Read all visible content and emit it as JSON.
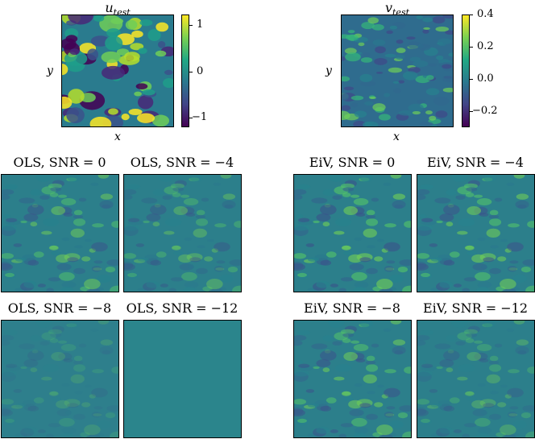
{
  "chart_data": [
    {
      "type": "heatmap",
      "title_base": "u",
      "title_sub": "test",
      "xlabel": "x",
      "ylabel": "y",
      "colorbar": {
        "ticks": [
          "1",
          "0",
          "−1"
        ],
        "range": [
          -1.3,
          1.3
        ]
      },
      "colormap": "viridis"
    },
    {
      "type": "heatmap",
      "title_base": "v",
      "title_sub": "test",
      "xlabel": "x",
      "ylabel": "y",
      "colorbar": {
        "ticks": [
          "0.4",
          "0.2",
          "0.0",
          "−0.2"
        ],
        "range": [
          -0.3,
          0.4
        ]
      },
      "colormap": "viridis"
    },
    {
      "type": "heatmap",
      "title": "OLS, SNR = 0",
      "method": "OLS",
      "snr": 0
    },
    {
      "type": "heatmap",
      "title": "OLS, SNR = −4",
      "method": "OLS",
      "snr": -4
    },
    {
      "type": "heatmap",
      "title": "EiV, SNR = 0",
      "method": "EiV",
      "snr": 0
    },
    {
      "type": "heatmap",
      "title": "EiV, SNR = −4",
      "method": "EiV",
      "snr": -4
    },
    {
      "type": "heatmap",
      "title": "OLS, SNR = −8",
      "method": "OLS",
      "snr": -8
    },
    {
      "type": "heatmap",
      "title": "OLS, SNR = −12",
      "method": "OLS",
      "snr": -12
    },
    {
      "type": "heatmap",
      "title": "EiV, SNR = −8",
      "method": "EiV",
      "snr": -8
    },
    {
      "type": "heatmap",
      "title": "EiV, SNR = −12",
      "method": "EiV",
      "snr": -12
    }
  ]
}
